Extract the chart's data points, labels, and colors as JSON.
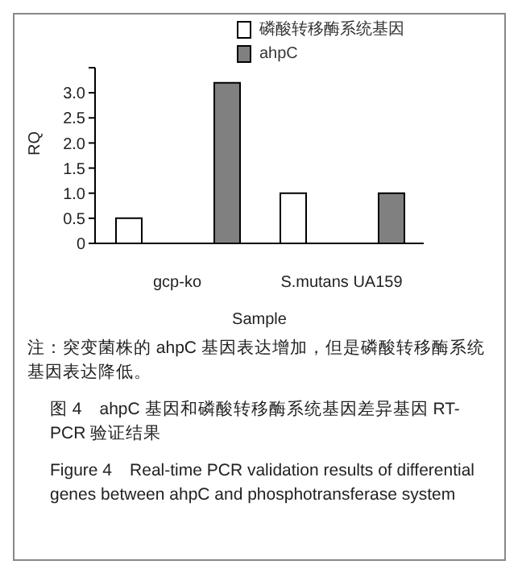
{
  "chart_data": {
    "type": "bar",
    "xlabel": "Sample",
    "ylabel": "RQ",
    "categories": [
      "gcp-ko",
      "S.mutans UA159"
    ],
    "series": [
      {
        "name": "磷酸转移酶系统基因",
        "color": "#ffffff",
        "values": [
          0.5,
          1.0
        ]
      },
      {
        "name": "ahpC",
        "color": "#808080",
        "values": [
          3.2,
          1.0
        ]
      }
    ],
    "ylim": [
      0,
      3.5
    ],
    "yticks": [
      0,
      0.5,
      {
        "value": 1,
        "label": "1.0"
      },
      1.5,
      {
        "value": 2,
        "label": "2.0"
      },
      2.5,
      {
        "value": 3,
        "label": "3.0"
      },
      {
        "value": 3.5,
        "label": null
      }
    ],
    "grid": false,
    "legend": "top right",
    "annotations": [
      "注：突变菌株的 ahpC 基因表达增加，但是磷酸转移酶系统基因表达降低。",
      "图 4　ahpC 基因和磷酸转移酶系统基因差异基因 RT-PCR 验证结果",
      "Figure 4　Real-time PCR validation results of differential genes between ahpC and phosphotransferase system"
    ]
  }
}
